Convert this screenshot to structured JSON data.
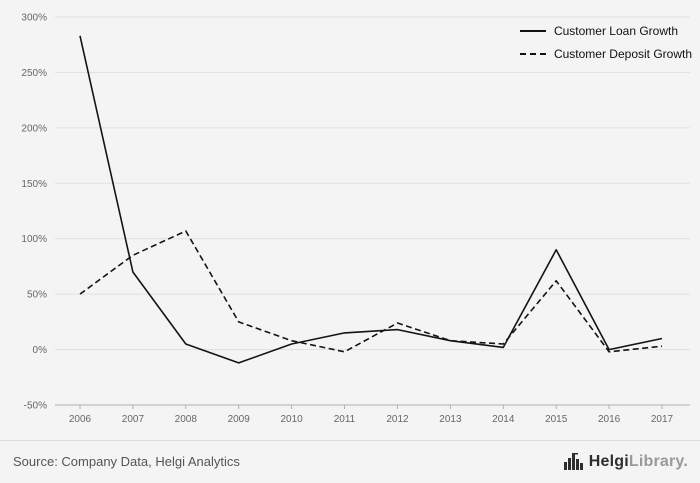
{
  "chart_data": {
    "type": "line",
    "x": [
      2006,
      2007,
      2008,
      2009,
      2010,
      2011,
      2012,
      2013,
      2014,
      2015,
      2016,
      2017
    ],
    "series": [
      {
        "name": "Customer Loan Growth",
        "style": "solid",
        "values": [
          283,
          70,
          5,
          -12,
          5,
          15,
          18,
          8,
          2,
          90,
          0,
          10
        ]
      },
      {
        "name": "Customer Deposit Growth",
        "style": "dashed",
        "values": [
          50,
          85,
          107,
          25,
          8,
          -2,
          24,
          8,
          5,
          62,
          -2,
          3
        ]
      }
    ],
    "ylim": [
      -50,
      300
    ],
    "ytick_step": 50,
    "ytick_suffix": "%",
    "grid": true,
    "legend_position": "top-right"
  },
  "footer": {
    "source": "Source: Company Data, Helgi Analytics",
    "logo_primary": "Helgi",
    "logo_secondary": "Library",
    "logo_dot": "."
  },
  "colors": {
    "background": "#f4f4f4",
    "line": "#141414",
    "grid": "#e0e0e0",
    "axis": "#b0b0b0",
    "text": "#666666"
  }
}
